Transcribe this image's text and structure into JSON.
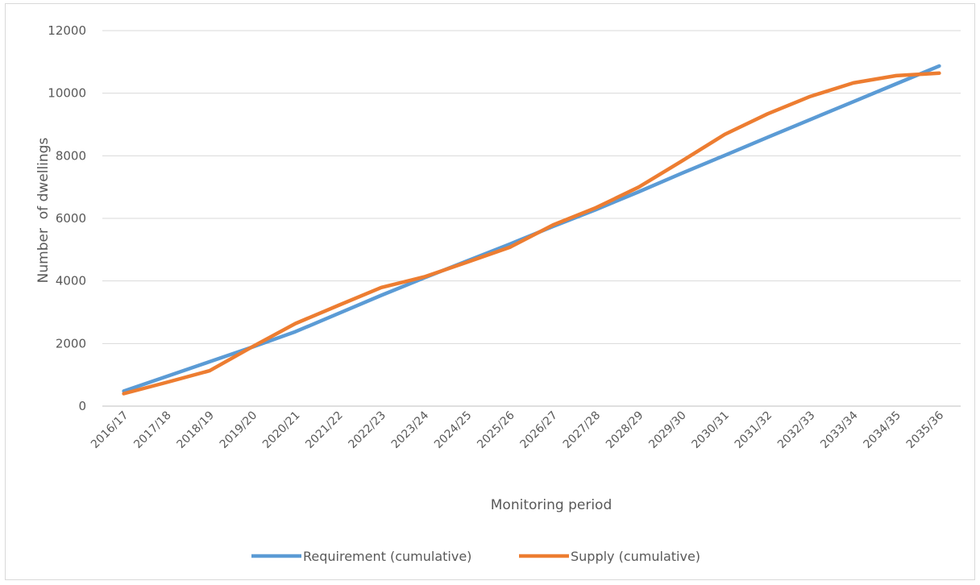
{
  "chart_data": {
    "type": "line",
    "title": "",
    "xlabel": "Monitoring period",
    "ylabel": "Number  of dwellings",
    "ylim": [
      0,
      12000
    ],
    "yticks": [
      0,
      2000,
      4000,
      6000,
      8000,
      10000,
      12000
    ],
    "grid": true,
    "legend_position": "bottom",
    "categories": [
      "2016/17",
      "2017/18",
      "2018/19",
      "2019/20",
      "2020/21",
      "2021/22",
      "2022/23",
      "2023/24",
      "2024/25",
      "2025/26",
      "2026/27",
      "2027/28",
      "2028/29",
      "2029/30",
      "2030/31",
      "2031/32",
      "2032/33",
      "2033/34",
      "2034/35",
      "2035/36"
    ],
    "series": [
      {
        "name": "Requirement (cumulative)",
        "color": "#5b9bd5",
        "values": [
          480,
          950,
          1420,
          1890,
          2380,
          2960,
          3540,
          4100,
          4640,
          5180,
          5740,
          6280,
          6850,
          7440,
          8010,
          8590,
          9160,
          9730,
          10300,
          10870
        ]
      },
      {
        "name": "Supply (cumulative)",
        "color": "#ed7d31",
        "values": [
          400,
          760,
          1130,
          1900,
          2640,
          3220,
          3790,
          4130,
          4600,
          5080,
          5790,
          6340,
          7000,
          7830,
          8680,
          9340,
          9900,
          10330,
          10560,
          10640
        ]
      }
    ]
  }
}
